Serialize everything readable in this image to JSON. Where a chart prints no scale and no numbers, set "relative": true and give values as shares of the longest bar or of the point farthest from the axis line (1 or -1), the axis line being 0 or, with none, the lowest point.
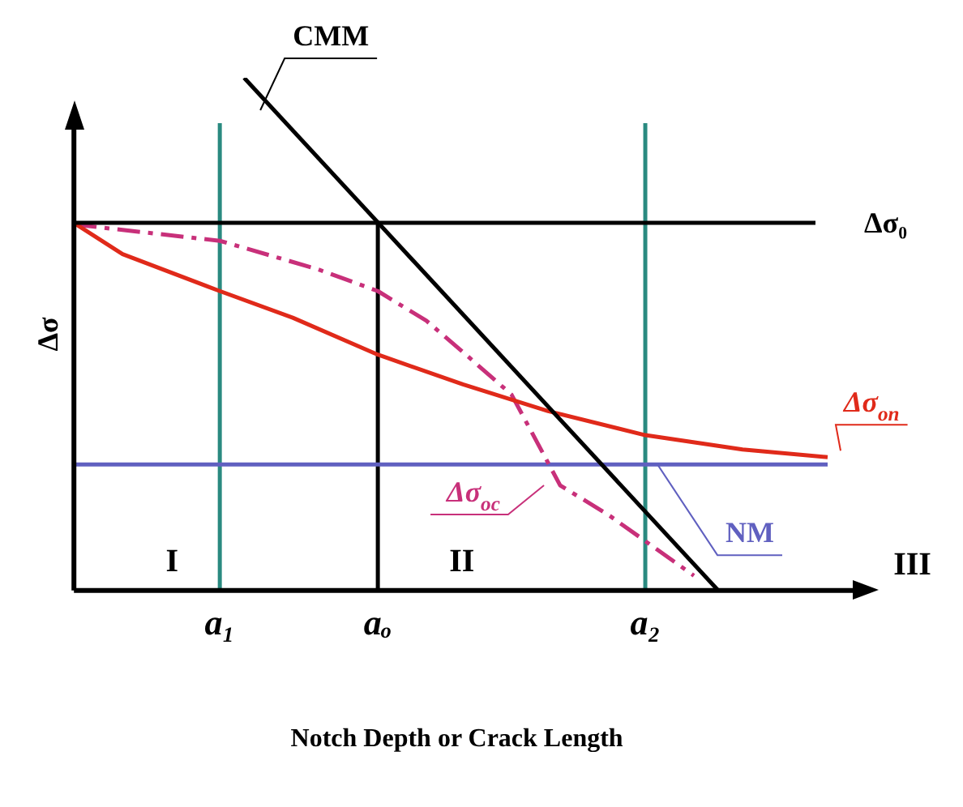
{
  "chart_data": {
    "type": "line",
    "relative": true,
    "xlabel": "Notch Depth or Crack Length",
    "ylabel": "Δσ",
    "categories": [
      null,
      null,
      null,
      null,
      null,
      null,
      null,
      null,
      null,
      null,
      null,
      null,
      "a₁",
      null,
      null,
      null,
      null,
      null,
      null,
      null,
      null,
      null,
      null,
      null,
      null,
      "aₒ",
      null,
      null,
      null,
      null,
      null,
      null,
      null,
      null,
      null,
      null,
      null,
      null,
      null,
      null,
      null,
      null,
      null,
      null,
      null,
      null,
      null,
      "a₂",
      null,
      null,
      null,
      null,
      null,
      null,
      null,
      null,
      null,
      null,
      null,
      null,
      null,
      null,
      null,
      null
    ],
    "series": [
      {
        "name": "Δσ₀",
        "color": "#000000",
        "values": [
          0.717,
          null,
          null,
          null,
          null,
          null,
          null,
          null,
          null,
          null,
          null,
          null,
          null,
          null,
          null,
          null,
          null,
          null,
          null,
          null,
          null,
          null,
          null,
          null,
          null,
          null,
          null,
          null,
          null,
          null,
          null,
          null,
          null,
          null,
          null,
          null,
          null,
          null,
          null,
          null,
          null,
          null,
          null,
          null,
          null,
          null,
          null,
          null,
          null,
          null,
          null,
          null,
          null,
          null,
          null,
          null,
          null,
          null,
          null,
          null,
          null,
          0.717,
          null,
          null
        ]
      },
      {
        "name": "CMM",
        "color": "#000000",
        "values": [
          null,
          null,
          null,
          null,
          null,
          null,
          null,
          null,
          null,
          null,
          null,
          null,
          null,
          null,
          1.0,
          null,
          null,
          null,
          null,
          null,
          null,
          null,
          null,
          null,
          null,
          null,
          null,
          null,
          null,
          null,
          null,
          null,
          null,
          null,
          null,
          null,
          null,
          null,
          null,
          null,
          null,
          null,
          null,
          null,
          null,
          null,
          null,
          null,
          null,
          null,
          null,
          null,
          null,
          0.0,
          null,
          null,
          null,
          null,
          null,
          null,
          null,
          null,
          null,
          null
        ]
      },
      {
        "name": "Δσ$_{on}$",
        "color": "#e02a1a",
        "values": [
          0.717,
          null,
          null,
          null,
          0.656,
          null,
          null,
          null,
          null,
          null,
          null,
          null,
          0.584,
          null,
          null,
          null,
          null,
          null,
          0.532,
          null,
          null,
          null,
          null,
          null,
          null,
          0.46,
          null,
          null,
          null,
          null,
          null,
          null,
          0.402,
          null,
          null,
          null,
          null,
          null,
          null,
          0.35,
          null,
          null,
          null,
          null,
          null,
          null,
          null,
          0.303,
          null,
          null,
          null,
          null,
          null,
          null,
          null,
          0.275,
          null,
          null,
          null,
          null,
          null,
          null,
          0.26,
          null
        ]
      },
      {
        "name": "Δσ$_{oc}$",
        "color": "#c8307a",
        "line_style": "dashed",
        "values": [
          0.714,
          null,
          null,
          null,
          null,
          null,
          null,
          null,
          null,
          null,
          null,
          null,
          0.682,
          null,
          null,
          null,
          null,
          null,
          null,
          null,
          0.627,
          null,
          null,
          null,
          null,
          0.584,
          null,
          null,
          null,
          0.526,
          null,
          null,
          0.465,
          null,
          null,
          null,
          0.382,
          null,
          null,
          null,
          0.205,
          null,
          null,
          null,
          0.147,
          null,
          null,
          null,
          null,
          null,
          null,
          0.029,
          null,
          null,
          null,
          null,
          null,
          null,
          null,
          null,
          null,
          null,
          null,
          null
        ]
      },
      {
        "name": "NM",
        "color": "#6060c0",
        "values": [
          0.246,
          null,
          null,
          null,
          null,
          null,
          null,
          null,
          null,
          null,
          null,
          null,
          null,
          null,
          null,
          null,
          null,
          null,
          null,
          null,
          null,
          null,
          null,
          null,
          null,
          null,
          null,
          null,
          null,
          null,
          null,
          null,
          null,
          null,
          null,
          null,
          null,
          null,
          null,
          null,
          null,
          null,
          null,
          null,
          null,
          null,
          null,
          null,
          null,
          null,
          null,
          null,
          null,
          null,
          null,
          null,
          null,
          null,
          null,
          null,
          null,
          null,
          0.246,
          null
        ]
      },
      {
        "color": "#000000",
        "x": [
          "aₒ",
          "aₒ"
        ],
        "values": [
          0,
          0.717
        ]
      }
    ],
    "ref_lines": [
      {
        "axis": "x",
        "value": "a₁",
        "color": "#2a8a80"
      },
      {
        "axis": "x",
        "value": "a₂",
        "color": "#2a8a80"
      }
    ],
    "annotations": [
      "I",
      "II",
      "III"
    ],
    "grid": false,
    "legend": false,
    "marker": "none",
    "line_style": "solid"
  }
}
